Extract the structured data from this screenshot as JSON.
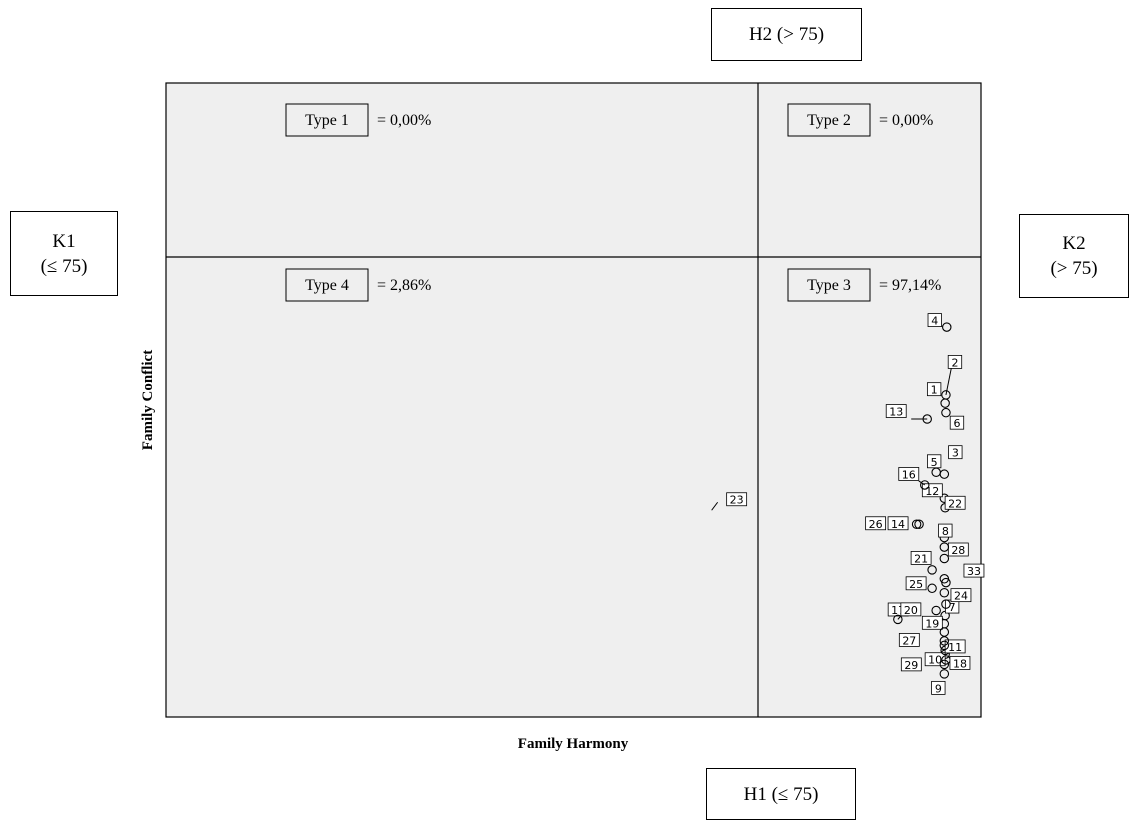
{
  "outer_labels": {
    "h2": "H2 (> 75)",
    "h1": "H1 (≤ 75)",
    "k1_line1": "K1",
    "k1_line2": "(≤ 75)",
    "k2_line1": "K2",
    "k2_line2": "(> 75)"
  },
  "chart_data": {
    "type": "scatter",
    "xlabel": "Family Harmony",
    "ylabel": "Family Conflict",
    "colors": {
      "background": "#efefef",
      "frame": "#000000",
      "marker": "#000000"
    },
    "quadrants": [
      {
        "type_label": "Type 1",
        "value_text": "= 0,00%"
      },
      {
        "type_label": "Type 2",
        "value_text": "= 0,00%"
      },
      {
        "type_label": "Type 4",
        "value_text": "= 2,86%"
      },
      {
        "type_label": "Type 3",
        "value_text": "= 97,14%"
      }
    ],
    "points": [
      {
        "id": "1",
        "x": 0.956,
        "y": 0.495
      },
      {
        "id": "2",
        "x": 0.957,
        "y": 0.508
      },
      {
        "id": "3",
        "x": 0.955,
        "y": 0.383
      },
      {
        "id": "4",
        "x": 0.958,
        "y": 0.615
      },
      {
        "id": "5",
        "x": 0.945,
        "y": 0.386
      },
      {
        "id": "6",
        "x": 0.957,
        "y": 0.48
      },
      {
        "id": "7",
        "x": 0.956,
        "y": 0.16
      },
      {
        "id": "8",
        "x": 0.955,
        "y": 0.283
      },
      {
        "id": "9",
        "x": 0.955,
        "y": 0.068
      },
      {
        "id": "10",
        "x": 0.956,
        "y": 0.099
      },
      {
        "id": "11",
        "x": 0.956,
        "y": 0.105
      },
      {
        "id": "12",
        "x": 0.955,
        "y": 0.345
      },
      {
        "id": "13",
        "x": 0.934,
        "y": 0.47
      },
      {
        "id": "14",
        "x": 0.924,
        "y": 0.304
      },
      {
        "id": "16",
        "x": 0.931,
        "y": 0.366
      },
      {
        "id": "17",
        "x": 0.945,
        "y": 0.168
      },
      {
        "id": "18",
        "x": 0.957,
        "y": 0.09
      },
      {
        "id": "19",
        "x": 0.955,
        "y": 0.147
      },
      {
        "id": "20",
        "x": 0.898,
        "y": 0.154
      },
      {
        "id": "21",
        "x": 0.94,
        "y": 0.232
      },
      {
        "id": "22",
        "x": 0.956,
        "y": 0.33
      },
      {
        "id": "23",
        "x": 0.683,
        "y": 0.334
      },
      {
        "id": "24",
        "x": 0.957,
        "y": 0.178
      },
      {
        "id": "25",
        "x": 0.94,
        "y": 0.203
      },
      {
        "id": "26",
        "x": 0.921,
        "y": 0.304
      },
      {
        "id": "27",
        "x": 0.955,
        "y": 0.12
      },
      {
        "id": "28",
        "x": 0.955,
        "y": 0.25
      },
      {
        "id": "29",
        "x": 0.955,
        "y": 0.083
      },
      {
        "id": "33",
        "x": 0.957,
        "y": 0.212
      }
    ],
    "point_groups": [
      {
        "x": 0.955,
        "y": 0.268
      },
      {
        "x": 0.955,
        "y": 0.218
      },
      {
        "x": 0.955,
        "y": 0.196
      },
      {
        "x": 0.955,
        "y": 0.134
      },
      {
        "x": 0.955,
        "y": 0.113
      }
    ]
  }
}
